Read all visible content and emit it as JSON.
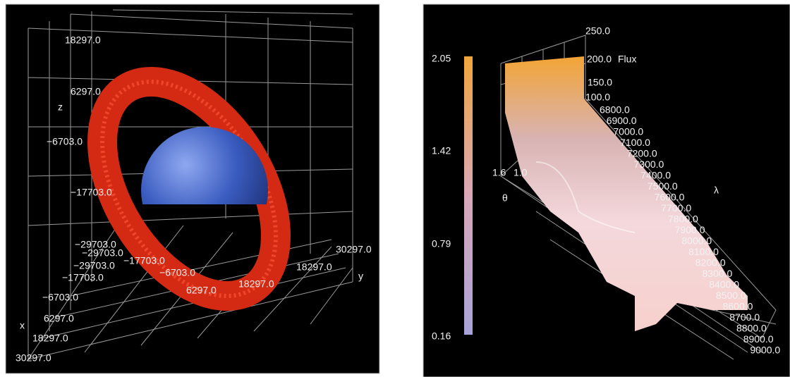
{
  "left_panel": {
    "labels": [
      "18297.0",
      "6297.0",
      "z",
      "−6703.0",
      "−17703.0",
      "−29703.0",
      "−29703.0",
      "−29703.0",
      "−17703.0",
      "−17703.0",
      "−6703.0",
      "6297.0",
      "18297.0",
      "−6703.0",
      "6297.0",
      "x",
      "18297.0",
      "30297.0",
      "30297.0",
      "18297.0",
      "y"
    ]
  },
  "right_panel": {
    "colorbar_ticks": [
      "2.05",
      "1.42",
      "0.79",
      "0.16"
    ],
    "flux_ticks": [
      "250.0",
      "200.0",
      "150.0",
      "100.0"
    ],
    "flux_label": "Flux",
    "lambda_ticks": [
      "6800.0",
      "6900.0",
      "7000.0",
      "7100.0",
      "7200.0",
      "7300.0",
      "7400.0",
      "7500.0",
      "7600.0",
      "7700.0",
      "7800.0",
      "7900.0",
      "8000.0",
      "8100.0",
      "8200.0",
      "8300.0",
      "8400.0",
      "8500.0",
      "8600.0",
      "8700.0",
      "8800.0",
      "8900.0",
      "9000.0"
    ],
    "lambda_label": "λ",
    "theta_ticks": [
      "1.6",
      "1.0"
    ],
    "theta_label": "θ"
  }
}
